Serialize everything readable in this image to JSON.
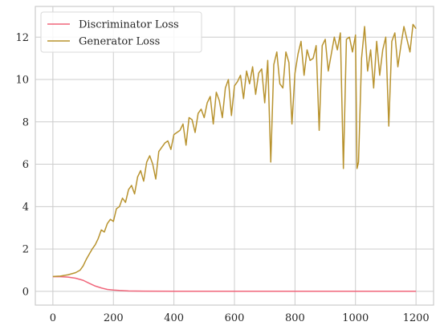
{
  "chart_data": {
    "type": "line",
    "title": "",
    "xlabel": "",
    "ylabel": "",
    "xlim": [
      -58,
      1258
    ],
    "ylim": [
      -0.65,
      13.45
    ],
    "xticks": [
      0,
      200,
      400,
      600,
      800,
      1000,
      1200
    ],
    "yticks": [
      0,
      2,
      4,
      6,
      8,
      10,
      12
    ],
    "grid": true,
    "legend_position": "top-left",
    "series": [
      {
        "name": "Discriminator Loss",
        "color": "#f0657a",
        "x": [
          0,
          25,
          50,
          75,
          100,
          120,
          140,
          160,
          180,
          200,
          220,
          250,
          300,
          400,
          500,
          600,
          700,
          800,
          900,
          1000,
          1100,
          1200
        ],
        "y": [
          0.69,
          0.69,
          0.67,
          0.62,
          0.52,
          0.38,
          0.25,
          0.16,
          0.09,
          0.06,
          0.04,
          0.02,
          0.01,
          0.005,
          0.003,
          0.002,
          0.002,
          0.002,
          0.002,
          0.002,
          0.002,
          0.002
        ]
      },
      {
        "name": "Generator Loss",
        "color": "#b8932f",
        "x": [
          0,
          25,
          50,
          75,
          90,
          100,
          110,
          120,
          130,
          140,
          150,
          160,
          170,
          180,
          190,
          200,
          210,
          220,
          230,
          240,
          250,
          260,
          270,
          280,
          290,
          300,
          310,
          320,
          330,
          340,
          350,
          360,
          370,
          380,
          390,
          400,
          410,
          420,
          430,
          440,
          450,
          460,
          470,
          480,
          490,
          500,
          510,
          520,
          530,
          540,
          550,
          560,
          570,
          580,
          590,
          600,
          610,
          620,
          630,
          640,
          650,
          660,
          670,
          680,
          690,
          700,
          710,
          720,
          730,
          740,
          750,
          760,
          770,
          780,
          790,
          800,
          810,
          820,
          830,
          840,
          850,
          860,
          870,
          880,
          890,
          900,
          910,
          920,
          930,
          940,
          950,
          960,
          970,
          980,
          990,
          1000,
          1005,
          1010,
          1020,
          1030,
          1040,
          1050,
          1060,
          1070,
          1080,
          1090,
          1100,
          1110,
          1120,
          1130,
          1140,
          1150,
          1160,
          1170,
          1180,
          1190,
          1200
        ],
        "y": [
          0.7,
          0.72,
          0.78,
          0.88,
          1.0,
          1.2,
          1.5,
          1.75,
          2.0,
          2.2,
          2.5,
          2.9,
          2.8,
          3.2,
          3.4,
          3.3,
          3.9,
          4.0,
          4.4,
          4.2,
          4.8,
          5.0,
          4.6,
          5.4,
          5.7,
          5.2,
          6.1,
          6.4,
          6.0,
          5.3,
          6.6,
          6.8,
          7.0,
          7.1,
          6.7,
          7.4,
          7.5,
          7.6,
          7.9,
          6.9,
          8.2,
          8.1,
          7.5,
          8.4,
          8.6,
          8.2,
          8.9,
          9.2,
          7.9,
          9.4,
          9.0,
          8.2,
          9.6,
          10.0,
          8.3,
          9.7,
          9.9,
          10.2,
          9.1,
          10.4,
          9.8,
          10.6,
          9.3,
          10.3,
          10.5,
          8.9,
          10.9,
          6.1,
          10.7,
          11.3,
          9.8,
          9.6,
          11.3,
          10.8,
          7.9,
          10.3,
          11.2,
          11.8,
          10.2,
          11.4,
          10.9,
          11.0,
          11.6,
          7.6,
          11.6,
          11.9,
          10.4,
          11.2,
          12.0,
          11.4,
          12.2,
          5.8,
          11.9,
          12.0,
          11.3,
          12.1,
          5.8,
          6.1,
          11.0,
          12.5,
          10.4,
          11.4,
          9.6,
          11.8,
          10.2,
          11.4,
          12.0,
          7.8,
          11.8,
          12.2,
          10.6,
          11.6,
          12.5,
          11.9,
          11.3,
          12.6,
          12.4
        ]
      }
    ]
  }
}
